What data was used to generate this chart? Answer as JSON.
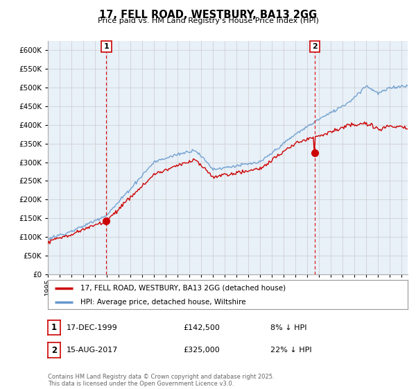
{
  "title": "17, FELL ROAD, WESTBURY, BA13 2GG",
  "subtitle": "Price paid vs. HM Land Registry's House Price Index (HPI)",
  "ylim": [
    0,
    625000
  ],
  "yticks": [
    0,
    50000,
    100000,
    150000,
    200000,
    250000,
    300000,
    350000,
    400000,
    450000,
    500000,
    550000,
    600000
  ],
  "sale1_date": "17-DEC-1999",
  "sale1_price": 142500,
  "sale1_label": "1",
  "sale1_pct": "8% ↓ HPI",
  "sale2_date": "15-AUG-2017",
  "sale2_price": 325000,
  "sale2_label": "2",
  "sale2_pct": "22% ↓ HPI",
  "legend_house": "17, FELL ROAD, WESTBURY, BA13 2GG (detached house)",
  "legend_hpi": "HPI: Average price, detached house, Wiltshire",
  "footer": "Contains HM Land Registry data © Crown copyright and database right 2025.\nThis data is licensed under the Open Government Licence v3.0.",
  "house_color": "#cc0000",
  "hpi_color": "#6699cc",
  "chart_bg_color": "#e8f0f8",
  "background_color": "#ffffff",
  "grid_color": "#cccccc",
  "sale_vline_color": "#dd0000",
  "annotation_box_color": "#cc0000",
  "xlim_start": 1995,
  "xlim_end": 2025.5
}
